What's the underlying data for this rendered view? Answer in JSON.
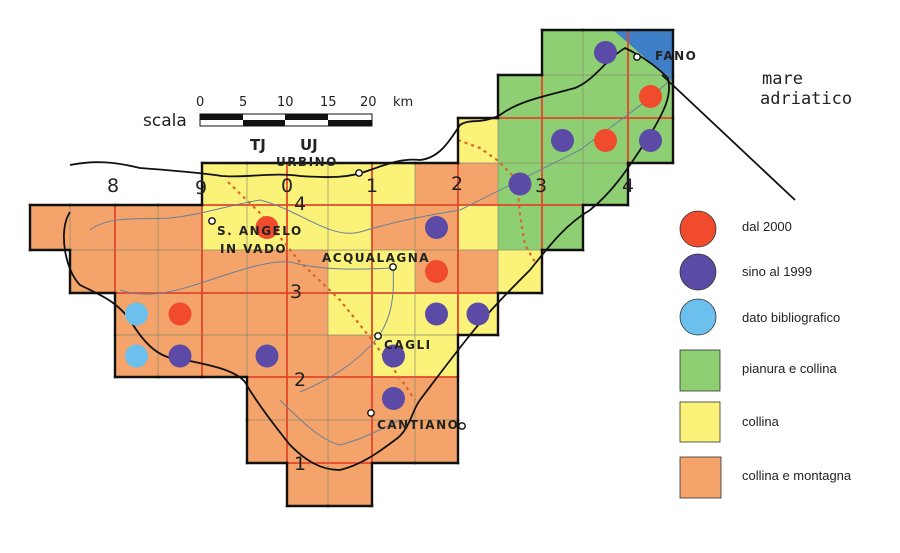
{
  "colors": {
    "pianura_e_collina": "#8fcf73",
    "collina": "#fbf27a",
    "collina_e_montagna": "#f4a46a",
    "sea_corner": "#3f7fc8",
    "dal_2000": "#ef4b2c",
    "sino_al_1999": "#5b4aa6",
    "dato_bibliografico": "#6cc0ee",
    "major_grid": "#e2462a",
    "minor_grid": "#8a8a6a"
  },
  "grid": {
    "legend_codes": {
      "G": "pianura_e_collina",
      "Y": "collina",
      "O": "collina_e_montagna"
    },
    "rows": [
      "............GGG",
      "...........GGGG",
      "..........YGGGG",
      "....YYYYYOOGGG.",
      "OOOOYYYYOOYGG..",
      ".OOOOOOYYOOY...",
      "..OOOOOYYYY....",
      "..OOOOOOYY.....",
      ".....OOOOO.....",
      ".....OOOOO.....",
      "......OO......."
    ]
  },
  "records": [
    {
      "type": "dal_2000",
      "cell": [
        5,
        4
      ]
    },
    {
      "type": "dal_2000",
      "cell": [
        3,
        6
      ]
    },
    {
      "type": "dal_2000",
      "cell": [
        9,
        5
      ]
    },
    {
      "type": "dal_2000",
      "cell": [
        14,
        1
      ]
    },
    {
      "type": "dal_2000",
      "cell": [
        13,
        2
      ]
    },
    {
      "type": "sino_al_1999",
      "cell": [
        13,
        0
      ]
    },
    {
      "type": "sino_al_1999",
      "cell": [
        11,
        3
      ]
    },
    {
      "type": "sino_al_1999",
      "cell": [
        12,
        2
      ]
    },
    {
      "type": "sino_al_1999",
      "cell": [
        14,
        2
      ]
    },
    {
      "type": "sino_al_1999",
      "cell": [
        9,
        4
      ]
    },
    {
      "type": "sino_al_1999",
      "cell": [
        9,
        6
      ]
    },
    {
      "type": "sino_al_1999",
      "cell": [
        10,
        6
      ]
    },
    {
      "type": "sino_al_1999",
      "cell": [
        8,
        7
      ]
    },
    {
      "type": "sino_al_1999",
      "cell": [
        8,
        8
      ]
    },
    {
      "type": "sino_al_1999",
      "cell": [
        3,
        7
      ]
    },
    {
      "type": "sino_al_1999",
      "cell": [
        5,
        7
      ]
    },
    {
      "type": "dato_bibliografico",
      "cell": [
        2,
        6
      ]
    },
    {
      "type": "dato_bibliografico",
      "cell": [
        2,
        7
      ]
    }
  ],
  "grid_labels": {
    "top": [
      "8",
      "9",
      "0",
      "1",
      "2",
      "3",
      "4"
    ],
    "side": [
      "4",
      "3",
      "2",
      "1"
    ],
    "zones": [
      "TJ",
      "UJ"
    ]
  },
  "towns": {
    "urbino": "URBINO",
    "s_angelo_1": "S. ANGELO",
    "s_angelo_2": "IN VADO",
    "acqualagna": "ACQUALAGNA",
    "cagli": "CAGLI",
    "cantiano": "CANTIANO",
    "fano": "FANO"
  },
  "sea": [
    "mare",
    "adriatico"
  ],
  "scale": {
    "title": "scala",
    "ticks": [
      "0",
      "5",
      "10",
      "15",
      "20"
    ],
    "unit": "km"
  },
  "legend": [
    {
      "key": "dal_2000",
      "shape": "circle",
      "label": "dal 2000"
    },
    {
      "key": "sino_al_1999",
      "shape": "circle",
      "label": "sino al 1999"
    },
    {
      "key": "dato_bibliografico",
      "shape": "circle",
      "label": "dato bibliografico"
    },
    {
      "key": "pianura_e_collina",
      "shape": "square",
      "label": "pianura e collina"
    },
    {
      "key": "collina",
      "shape": "square",
      "label": "collina"
    },
    {
      "key": "collina_e_montagna",
      "shape": "square",
      "label": "collina e montagna"
    }
  ]
}
